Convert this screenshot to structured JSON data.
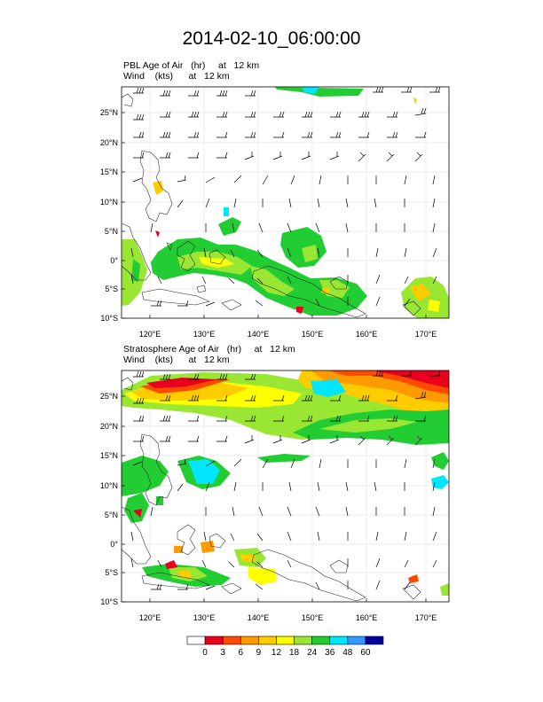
{
  "title": "2014-02-10_06:00:00",
  "panels": [
    {
      "line1": "PBL Age of Air   (hr)     at   12 km",
      "line2": "Wind    (kts)      at   12 km",
      "lat_labels": [
        "25°N",
        "20°N",
        "15°N",
        "10°N",
        "5°N",
        "0°",
        "5°S",
        "10°S"
      ],
      "lon_labels": [
        "120°E",
        "130°E",
        "140°E",
        "150°E",
        "160°E",
        "170°E"
      ]
    },
    {
      "line1": "Stratosphere Age of Air   (hr)     at   12 km",
      "line2": "Wind    (kts)      at   12 km",
      "lat_labels": [
        "25°N",
        "20°N",
        "15°N",
        "10°N",
        "5°N",
        "0°",
        "5°S",
        "10°S"
      ],
      "lon_labels": [
        "120°E",
        "130°E",
        "140°E",
        "150°E",
        "160°E",
        "170°E"
      ]
    }
  ],
  "colorbar": {
    "labels": [
      "0",
      "3",
      "6",
      "9",
      "12",
      "18",
      "24",
      "36",
      "48",
      "60"
    ],
    "colors": [
      "#ffffff",
      "#e8001e",
      "#ff4a00",
      "#ff9a00",
      "#ffcc00",
      "#ffff00",
      "#99e633",
      "#22cc33",
      "#00e6ff",
      "#3399ff",
      "#000099"
    ]
  }
}
